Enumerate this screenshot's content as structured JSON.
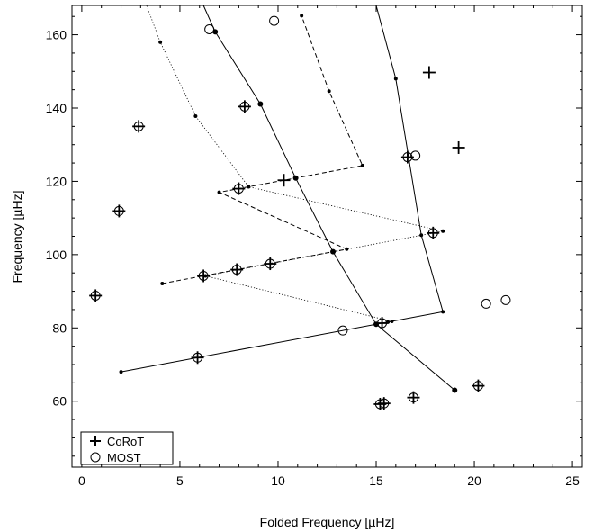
{
  "chart_data": {
    "type": "scatter",
    "xlabel": "Folded Frequency [µHz]",
    "ylabel": "Frequency [µHz]",
    "xlim": [
      -0.5,
      25.5
    ],
    "ylim": [
      42,
      168
    ],
    "xticks": [
      0,
      5,
      10,
      15,
      20,
      25
    ],
    "yticks": [
      60,
      80,
      100,
      120,
      140,
      160
    ],
    "grid": false,
    "legend_position": "bottom-left",
    "legend": [
      {
        "symbol": "+",
        "label": "CoRoT"
      },
      {
        "symbol": "○",
        "label": "MOST"
      }
    ],
    "series": [
      {
        "name": "CoRoT",
        "marker": "plus",
        "points": [
          [
            0.7,
            88.8
          ],
          [
            1.9,
            111.9
          ],
          [
            2.9,
            135.0
          ],
          [
            6.2,
            94.2
          ],
          [
            5.9,
            71.9
          ],
          [
            7.9,
            95.9
          ],
          [
            8.0,
            118.0
          ],
          [
            8.3,
            140.4
          ],
          [
            9.6,
            97.5
          ],
          [
            10.3,
            120.3
          ],
          [
            15.3,
            81.3
          ],
          [
            15.2,
            59.2
          ],
          [
            15.4,
            59.4
          ],
          [
            16.9,
            61.0
          ],
          [
            17.9,
            105.9
          ],
          [
            16.6,
            126.6
          ],
          [
            17.7,
            149.7
          ],
          [
            19.2,
            129.2
          ],
          [
            20.2,
            64.2
          ]
        ]
      },
      {
        "name": "MOST",
        "marker": "circle",
        "points": [
          [
            2.9,
            135.0
          ],
          [
            6.2,
            94.2
          ],
          [
            5.9,
            71.9
          ],
          [
            7.9,
            95.9
          ],
          [
            8.0,
            118.0
          ],
          [
            8.3,
            140.4
          ],
          [
            9.6,
            97.5
          ],
          [
            15.3,
            81.3
          ],
          [
            15.2,
            59.2
          ],
          [
            15.4,
            59.4
          ],
          [
            16.9,
            61.0
          ],
          [
            17.9,
            105.9
          ],
          [
            16.6,
            126.6
          ],
          [
            20.2,
            64.2
          ],
          [
            1.9,
            111.9
          ],
          [
            0.7,
            88.8
          ],
          [
            6.5,
            161.5
          ],
          [
            9.8,
            163.8
          ],
          [
            13.3,
            79.3
          ],
          [
            17.0,
            127.0
          ],
          [
            20.6,
            86.6
          ],
          [
            21.6,
            87.6
          ]
        ]
      }
    ],
    "ridges": [
      {
        "style": "solid",
        "marker_size": "small",
        "points": [
          [
            2.0,
            68.0
          ],
          [
            15.6,
            81.6
          ],
          [
            18.4,
            84.4
          ],
          [
            17.3,
            105.3
          ],
          [
            16.0,
            148.0
          ],
          [
            15.0,
            168.0
          ]
        ]
      },
      {
        "style": "dashed",
        "marker_size": "small",
        "points": [
          [
            4.1,
            92.1
          ],
          [
            13.5,
            101.5
          ],
          [
            7.0,
            117.0
          ],
          [
            14.3,
            124.3
          ],
          [
            12.6,
            144.6
          ],
          [
            11.2,
            165.2
          ]
        ]
      },
      {
        "style": "dotted",
        "marker_size": "small",
        "points": [
          [
            15.8,
            81.8
          ],
          [
            6.3,
            94.2
          ],
          [
            18.4,
            106.4
          ],
          [
            8.5,
            118.5
          ],
          [
            5.8,
            137.8
          ],
          [
            4.0,
            158.0
          ],
          [
            3.3,
            168.0
          ]
        ]
      },
      {
        "style": "solid",
        "marker_size": "large",
        "points": [
          [
            19.0,
            63.0
          ],
          [
            15.0,
            81.0
          ],
          [
            12.8,
            100.8
          ],
          [
            10.9,
            120.9
          ],
          [
            9.1,
            141.1
          ],
          [
            6.8,
            160.8
          ],
          [
            6.2,
            168.0
          ]
        ]
      }
    ]
  }
}
